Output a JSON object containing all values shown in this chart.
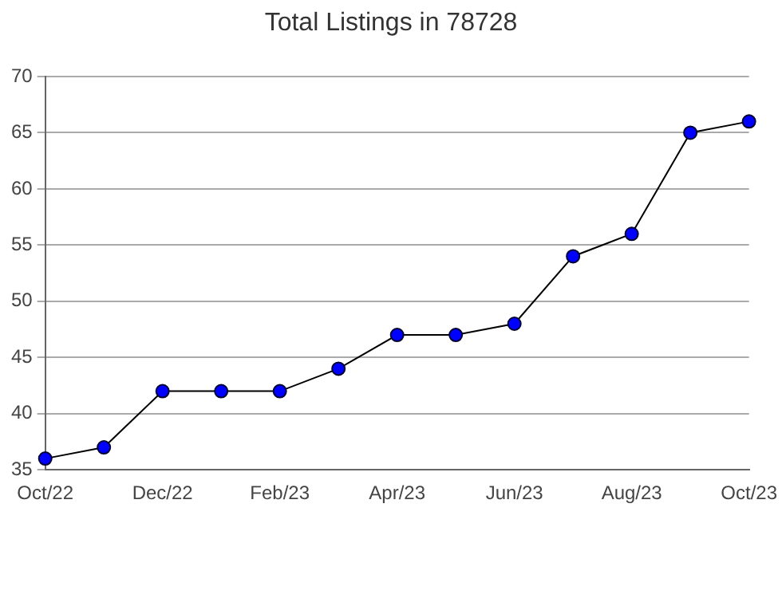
{
  "chart_data": {
    "type": "line",
    "title": "Total Listings in 78728",
    "categories": [
      "Oct/22",
      null,
      "Dec/22",
      null,
      "Feb/23",
      null,
      "Apr/23",
      null,
      "Jun/23",
      null,
      "Aug/23",
      null,
      "Oct/23"
    ],
    "series": [
      {
        "color": "#0000ff",
        "values": [
          36,
          37,
          42,
          42,
          42,
          44,
          47,
          47,
          48,
          54,
          56,
          65,
          66
        ]
      }
    ],
    "ylim": [
      35,
      70
    ],
    "yticks": [
      35,
      40,
      45,
      50,
      55,
      60,
      65,
      70
    ],
    "grid": "y",
    "legend": false,
    "marker": "circle"
  }
}
